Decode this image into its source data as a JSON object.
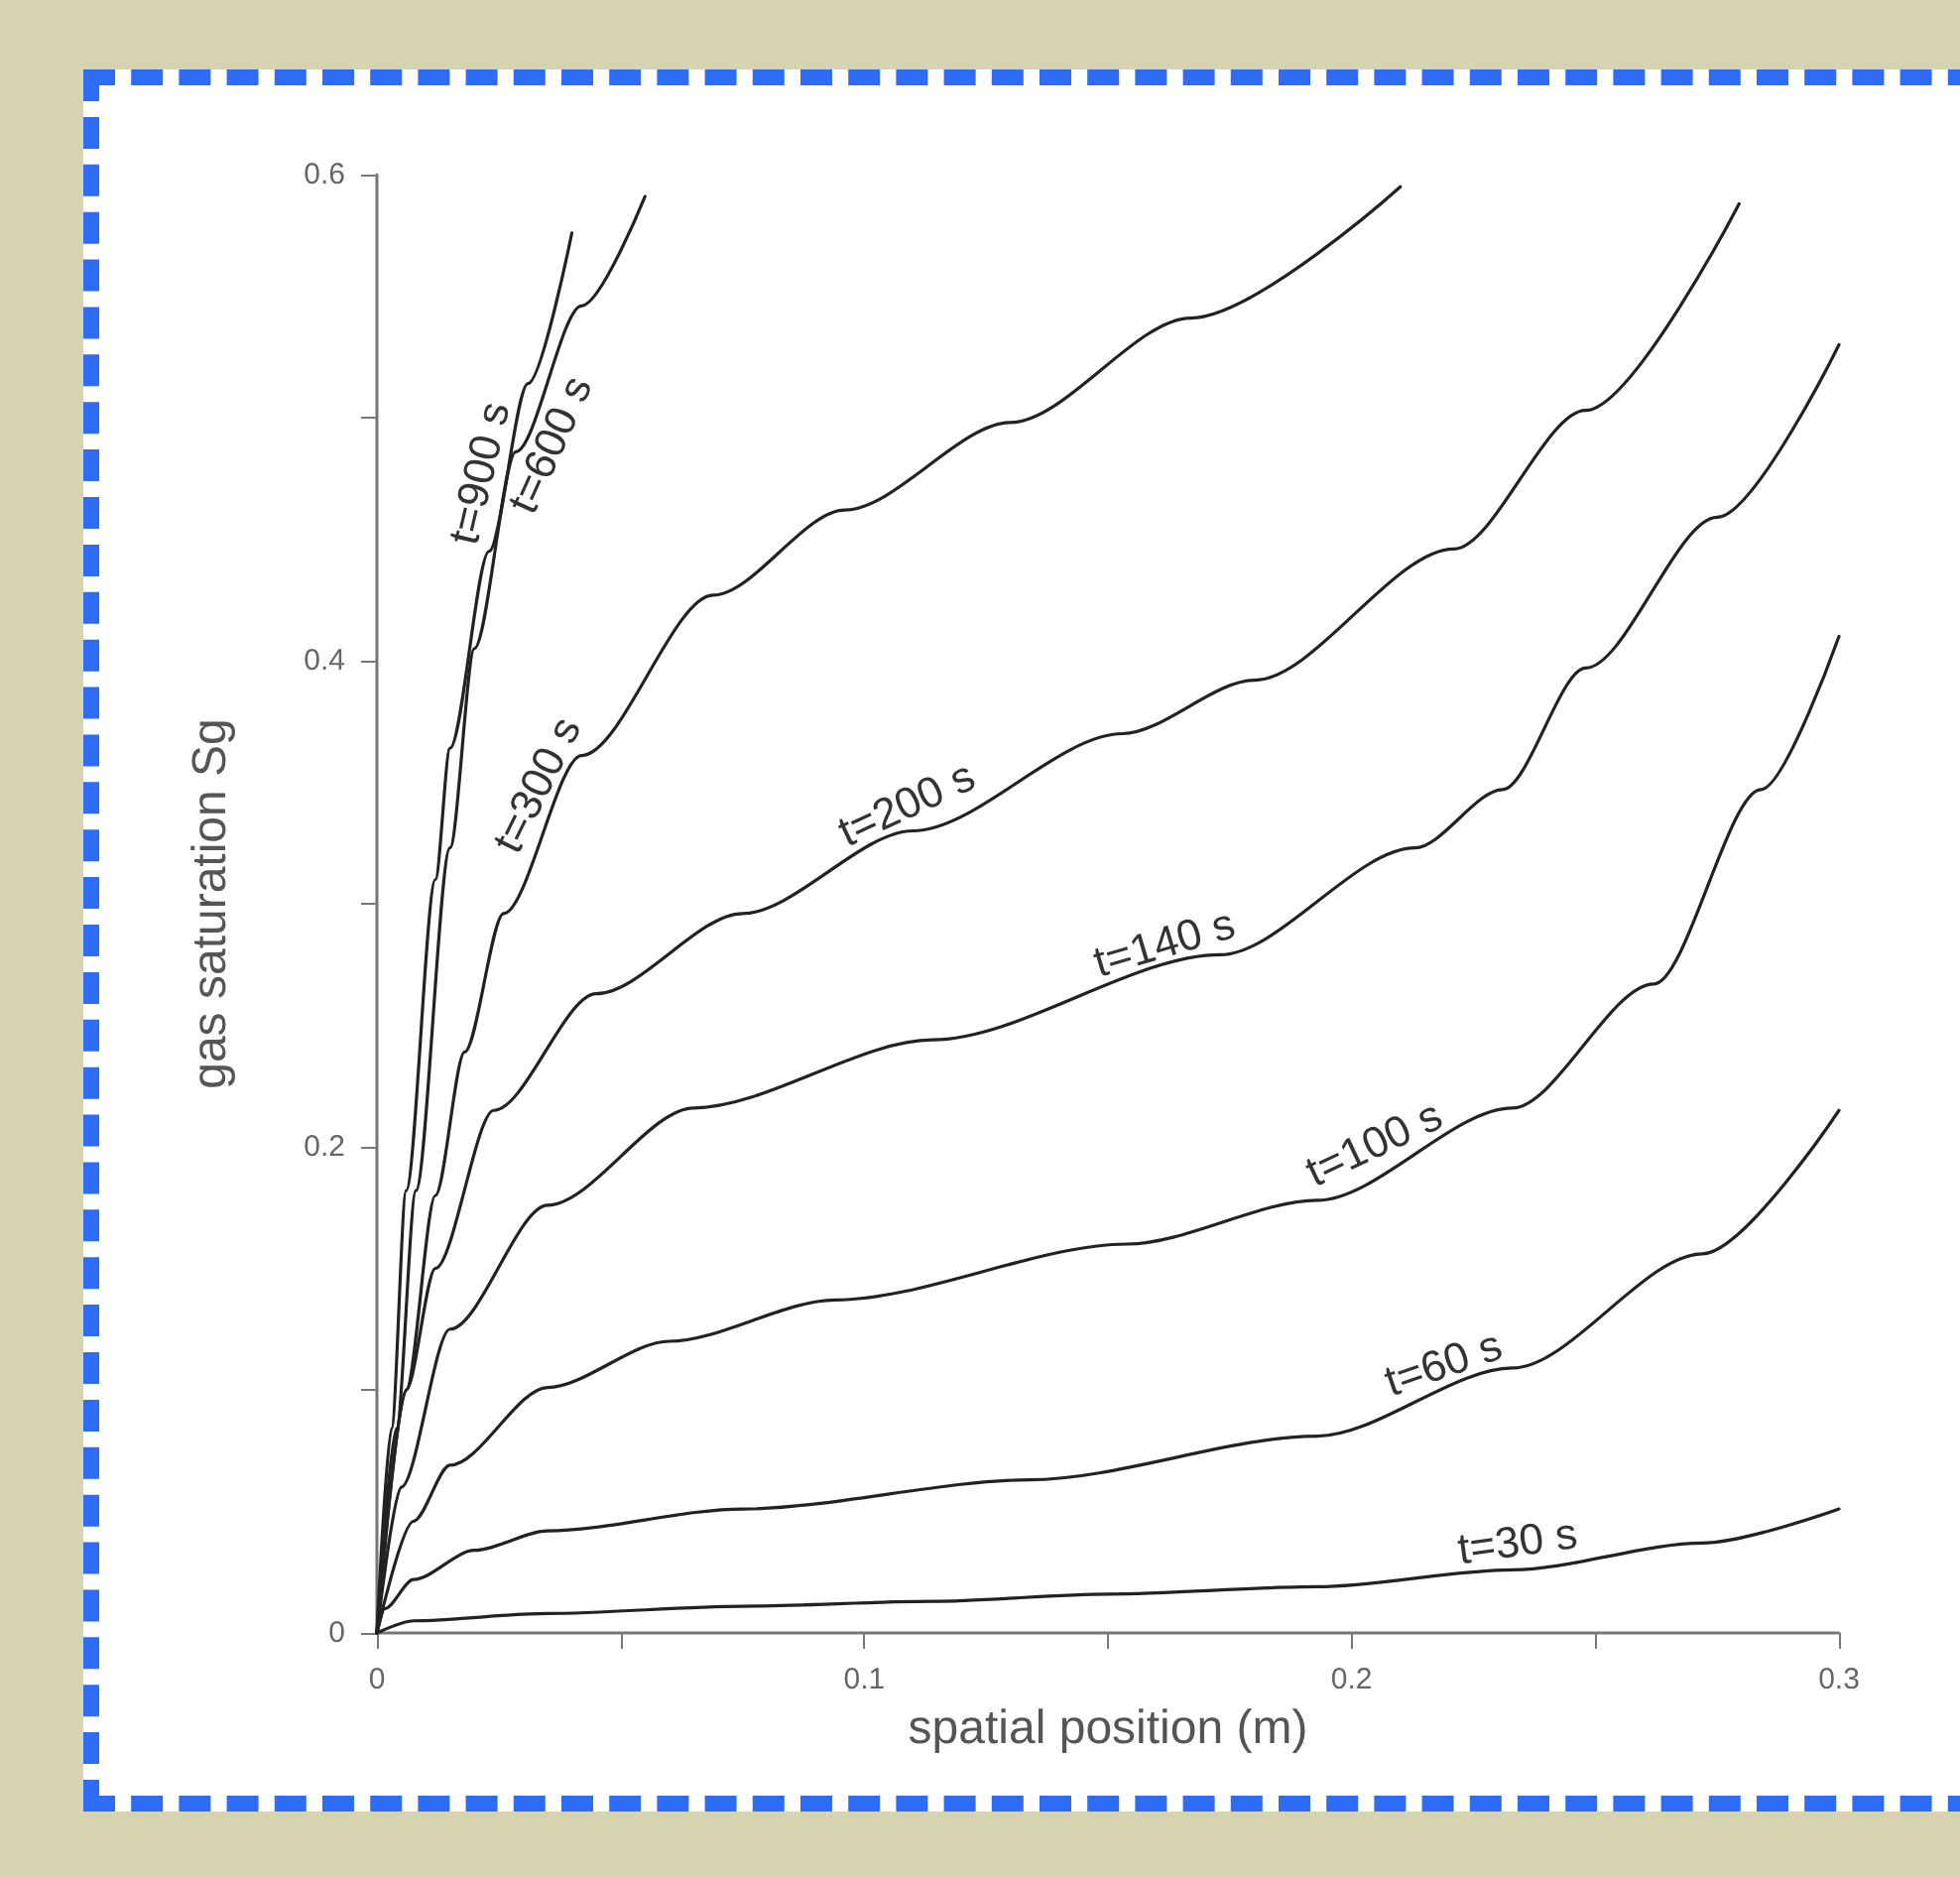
{
  "chart_data": {
    "type": "line",
    "xlabel": "spatial position (m)",
    "ylabel": "gas saturation Sg",
    "xlim": [
      0,
      0.3
    ],
    "ylim": [
      0,
      0.6
    ],
    "xticks": [
      0,
      {
        "value": 0.05,
        "label": null
      },
      0.1,
      {
        "value": 0.15,
        "label": null
      },
      0.2,
      {
        "value": 0.25,
        "label": null
      },
      0.3
    ],
    "yticks": [
      0,
      {
        "value": 0.1,
        "label": null
      },
      0.2,
      {
        "value": 0.3,
        "label": null
      },
      0.4,
      {
        "value": 0.5,
        "label": null
      },
      0.6
    ],
    "grid": false,
    "legend": false,
    "marker": "none",
    "line_style": "solid",
    "series": [
      {
        "name": "t=30 s",
        "color": "#222222",
        "x": [
          0,
          0.0075,
          0.035,
          0.075,
          0.114,
          0.15,
          0.193,
          0.233,
          0.272,
          0.3
        ],
        "values": [
          0,
          0.005,
          0.008,
          0.011,
          0.013,
          0.016,
          0.019,
          0.026,
          0.037,
          0.051
        ]
      },
      {
        "name": "t=60 s",
        "color": "#222222",
        "x": [
          0,
          0.0016,
          0.0075,
          0.02,
          0.035,
          0.075,
          0.134,
          0.193,
          0.233,
          0.272,
          0.3
        ],
        "values": [
          0,
          0.01,
          0.022,
          0.034,
          0.042,
          0.051,
          0.063,
          0.081,
          0.109,
          0.156,
          0.215
        ]
      },
      {
        "name": "t=100 s",
        "color": "#222222",
        "x": [
          0,
          0.0075,
          0.015,
          0.035,
          0.06,
          0.094,
          0.154,
          0.193,
          0.233,
          0.262,
          0.284,
          0.3
        ],
        "values": [
          0,
          0.046,
          0.069,
          0.101,
          0.12,
          0.137,
          0.16,
          0.178,
          0.216,
          0.267,
          0.347,
          0.41
        ]
      },
      {
        "name": "t=140 s",
        "color": "#222222",
        "x": [
          0,
          0.005,
          0.015,
          0.035,
          0.065,
          0.114,
          0.173,
          0.213,
          0.231,
          0.248,
          0.275,
          0.3
        ],
        "values": [
          0,
          0.06,
          0.125,
          0.176,
          0.216,
          0.244,
          0.279,
          0.323,
          0.347,
          0.397,
          0.459,
          0.53
        ]
      },
      {
        "name": "t=200 s",
        "color": "#222222",
        "x": [
          0,
          0.006,
          0.012,
          0.024,
          0.045,
          0.075,
          0.11,
          0.153,
          0.18,
          0.221,
          0.248,
          0.2795
        ],
        "values": [
          0,
          0.1,
          0.15,
          0.215,
          0.263,
          0.296,
          0.33,
          0.37,
          0.392,
          0.446,
          0.503,
          0.588
        ]
      },
      {
        "name": "t=300 s",
        "color": "#222222",
        "x": [
          0,
          0.006,
          0.012,
          0.018,
          0.026,
          0.042,
          0.069,
          0.096,
          0.13,
          0.167,
          0.21
        ],
        "values": [
          0,
          0.1,
          0.18,
          0.239,
          0.296,
          0.361,
          0.427,
          0.462,
          0.498,
          0.541,
          0.595
        ]
      },
      {
        "name": "t=600 s",
        "color": "#222222",
        "x": [
          0,
          0.004,
          0.008,
          0.015,
          0.02,
          0.0285,
          0.042,
          0.055
        ],
        "values": [
          0,
          0.084,
          0.182,
          0.323,
          0.405,
          0.486,
          0.546,
          0.591
        ]
      },
      {
        "name": "t=900 s",
        "color": "#222222",
        "x": [
          0,
          0.003,
          0.006,
          0.012,
          0.015,
          0.023,
          0.031,
          0.04
        ],
        "values": [
          0,
          0.084,
          0.182,
          0.31,
          0.364,
          0.445,
          0.514,
          0.576
        ]
      }
    ]
  }
}
